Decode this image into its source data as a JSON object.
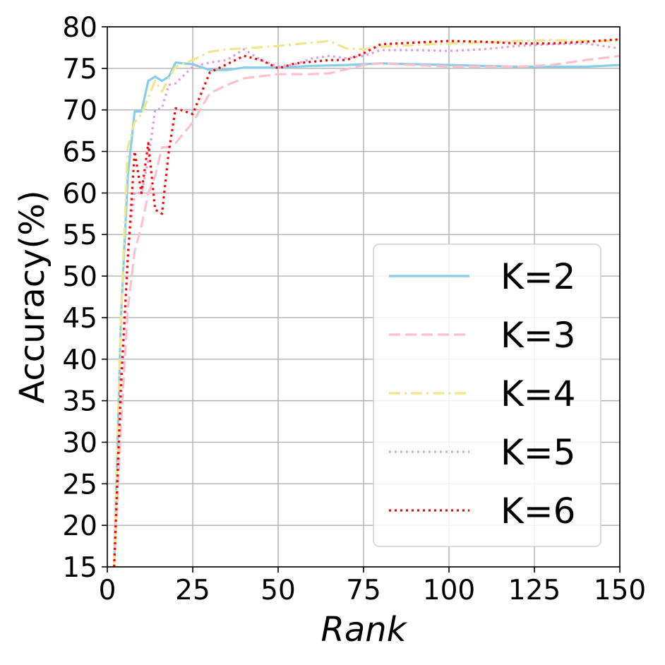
{
  "chart_data": {
    "type": "line",
    "xlabel": "Rank",
    "ylabel": "Accuracy(%)",
    "xlim": [
      0,
      150
    ],
    "ylim": [
      15,
      80
    ],
    "xticks": [
      0,
      25,
      50,
      75,
      100,
      125,
      150
    ],
    "yticks": [
      15,
      20,
      25,
      30,
      35,
      40,
      45,
      50,
      55,
      60,
      65,
      70,
      75,
      80
    ],
    "grid": true,
    "legend_position": "lower-right",
    "series": [
      {
        "name": "K=2",
        "color": "#87ceeb",
        "style": "solid",
        "x": [
          2,
          4,
          6,
          8,
          10,
          12,
          14,
          16,
          18,
          20,
          25,
          30,
          35,
          40,
          50,
          60,
          70,
          80,
          90,
          100,
          110,
          120,
          130,
          140,
          150
        ],
        "y": [
          15,
          45,
          62,
          69.8,
          69.8,
          73.5,
          74,
          73.5,
          74,
          75.7,
          75.5,
          74.8,
          74.8,
          75.1,
          75.1,
          75.3,
          75.4,
          75.6,
          75.5,
          75.4,
          75.3,
          75.2,
          75.2,
          75.2,
          75.4
        ]
      },
      {
        "name": "K=3",
        "color": "#ffc0cb",
        "style": "dashed",
        "x": [
          2,
          4,
          6,
          8,
          10,
          12,
          14,
          16,
          18,
          20,
          25,
          30,
          35,
          40,
          50,
          60,
          65,
          75,
          80,
          90,
          100,
          110,
          120,
          130,
          140,
          150
        ],
        "y": [
          15,
          32,
          46,
          53,
          56,
          60,
          62,
          65.5,
          65.5,
          66,
          68.5,
          72,
          73,
          73.8,
          74.3,
          74.3,
          74.4,
          75.4,
          75.6,
          75.4,
          75.2,
          75.2,
          75.2,
          75.4,
          76,
          76.5
        ]
      },
      {
        "name": "K=4",
        "color": "#f0e68c",
        "style": "dashdot",
        "x": [
          2,
          4,
          6,
          8,
          10,
          12,
          14,
          16,
          18,
          20,
          25,
          30,
          35,
          40,
          50,
          60,
          65,
          70,
          75,
          80,
          90,
          100,
          110,
          120,
          130,
          140,
          150
        ],
        "y": [
          15,
          45,
          65.5,
          68.5,
          69.5,
          71.5,
          73.5,
          72.2,
          73.8,
          75.2,
          76,
          77,
          77.3,
          77.4,
          77.7,
          78.1,
          78.3,
          77.4,
          77.3,
          77.6,
          77.8,
          78,
          78.1,
          78.3,
          78.4,
          78.3,
          78.3
        ]
      },
      {
        "name": "K=5",
        "color": "#dda0dd",
        "style": "dotted",
        "x": [
          2,
          4,
          6,
          8,
          10,
          12,
          14,
          16,
          18,
          20,
          25,
          30,
          35,
          40,
          45,
          50,
          55,
          60,
          65,
          70,
          75,
          80,
          90,
          100,
          110,
          120,
          130,
          140,
          150
        ],
        "y": [
          15,
          35,
          53,
          60,
          60,
          64,
          70,
          70.2,
          73,
          73.2,
          75.2,
          75.7,
          76,
          77.3,
          76,
          75.2,
          75.5,
          76.2,
          76.5,
          76.2,
          76.5,
          77.2,
          77.2,
          77.1,
          77.3,
          77.7,
          77.9,
          78,
          77.4
        ]
      },
      {
        "name": "K=6",
        "color": "#ff0000",
        "style": "dotted",
        "x": [
          2,
          4,
          6,
          8,
          10,
          12,
          14,
          16,
          18,
          20,
          25,
          30,
          35,
          40,
          45,
          50,
          55,
          60,
          65,
          70,
          75,
          80,
          90,
          100,
          110,
          120,
          130,
          140,
          150
        ],
        "y": [
          15,
          37,
          52,
          65,
          60,
          66,
          58,
          57.5,
          65,
          70.2,
          69.5,
          74.5,
          75.5,
          76.5,
          76,
          75,
          75.6,
          75.8,
          76,
          76,
          76.8,
          77.9,
          78.1,
          78.3,
          78.2,
          78,
          78,
          78.2,
          78.5
        ]
      }
    ]
  }
}
